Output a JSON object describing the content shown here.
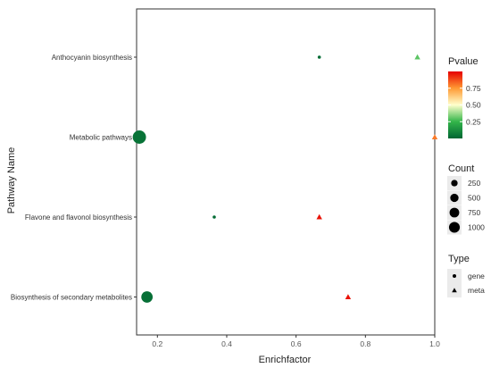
{
  "chart_data": {
    "type": "scatter",
    "xlabel": "Enrichfactor",
    "ylabel": "Pathway Name",
    "xlim": [
      0.14,
      1.0
    ],
    "xticks": [
      0.2,
      0.4,
      0.6,
      0.8,
      1.0
    ],
    "xtick_labels": [
      "0.2",
      "0.4",
      "0.6",
      "0.8",
      "1.0"
    ],
    "categories": [
      "Anthocyanin biosynthesis",
      "Metabolic pathways",
      "Flavone and flavonol biosynthesis",
      "Biosynthesis of secondary metabolites"
    ],
    "grid": false,
    "points": [
      {
        "pathway": "Anthocyanin biosynthesis",
        "x": 0.667,
        "type": "gene",
        "pvalue": 0.02,
        "count": 1
      },
      {
        "pathway": "Anthocyanin biosynthesis",
        "x": 0.95,
        "type": "meta",
        "pvalue": 0.3,
        "count": 2
      },
      {
        "pathway": "Metabolic pathways",
        "x": 0.148,
        "type": "gene",
        "pvalue": 0.04,
        "count": 900
      },
      {
        "pathway": "Metabolic pathways",
        "x": 1.0,
        "type": "meta",
        "pvalue": 0.8,
        "count": 1
      },
      {
        "pathway": "Flavone and flavonol biosynthesis",
        "x": 0.364,
        "type": "gene",
        "pvalue": 0.02,
        "count": 1
      },
      {
        "pathway": "Flavone and flavonol biosynthesis",
        "x": 0.667,
        "type": "meta",
        "pvalue": 0.97,
        "count": 1
      },
      {
        "pathway": "Biosynthesis of secondary metabolites",
        "x": 0.17,
        "type": "gene",
        "pvalue": 0.03,
        "count": 600
      },
      {
        "pathway": "Biosynthesis of secondary metabolites",
        "x": 0.75,
        "type": "meta",
        "pvalue": 0.97,
        "count": 1
      }
    ],
    "legend_placement": "right",
    "legend": {
      "pvalue": {
        "title": "Pvalue",
        "ticks": [
          0.25,
          0.5,
          0.75
        ],
        "tick_labels": [
          "0.25",
          "0.50",
          "0.75"
        ],
        "range": [
          0.0,
          1.0
        ],
        "colors": [
          "#006633",
          "#33b54a",
          "#ffffcc",
          "#ff9933",
          "#e60000"
        ]
      },
      "count": {
        "title": "Count",
        "values": [
          250,
          500,
          750,
          1000
        ],
        "labels": [
          "250",
          "500",
          "750",
          "1000"
        ]
      },
      "type": {
        "title": "Type",
        "items": [
          {
            "label": "gene",
            "shape": "circle"
          },
          {
            "label": "meta",
            "shape": "triangle"
          }
        ]
      }
    }
  }
}
